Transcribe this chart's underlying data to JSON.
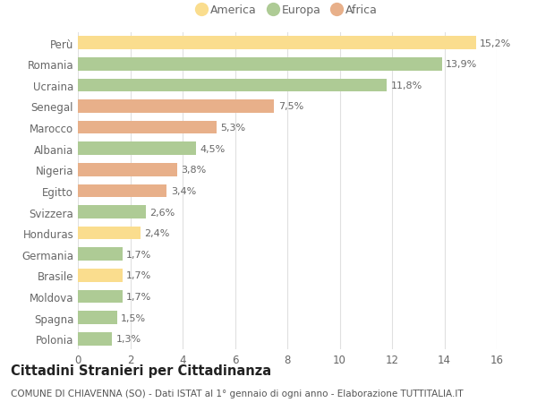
{
  "categories": [
    "Perù",
    "Romania",
    "Ucraina",
    "Senegal",
    "Marocco",
    "Albania",
    "Nigeria",
    "Egitto",
    "Svizzera",
    "Honduras",
    "Germania",
    "Brasile",
    "Moldova",
    "Spagna",
    "Polonia"
  ],
  "values": [
    15.2,
    13.9,
    11.8,
    7.5,
    5.3,
    4.5,
    3.8,
    3.4,
    2.6,
    2.4,
    1.7,
    1.7,
    1.7,
    1.5,
    1.3
  ],
  "continents": [
    "America",
    "Europa",
    "Europa",
    "Africa",
    "Africa",
    "Europa",
    "Africa",
    "Africa",
    "Europa",
    "America",
    "Europa",
    "America",
    "Europa",
    "Europa",
    "Europa"
  ],
  "colors": {
    "America": "#FADD8E",
    "Europa": "#AECB95",
    "Africa": "#E8B08A"
  },
  "labels": [
    "15,2%",
    "13,9%",
    "11,8%",
    "7,5%",
    "5,3%",
    "4,5%",
    "3,8%",
    "3,4%",
    "2,6%",
    "2,4%",
    "1,7%",
    "1,7%",
    "1,7%",
    "1,5%",
    "1,3%"
  ],
  "xlim": [
    0,
    16
  ],
  "xticks": [
    0,
    2,
    4,
    6,
    8,
    10,
    12,
    14,
    16
  ],
  "title": "Cittadini Stranieri per Cittadinanza",
  "subtitle": "COMUNE DI CHIAVENNA (SO) - Dati ISTAT al 1° gennaio di ogni anno - Elaborazione TUTTITALIA.IT",
  "legend_labels": [
    "America",
    "Europa",
    "Africa"
  ],
  "legend_colors": [
    "#FADD8E",
    "#AECB95",
    "#E8B08A"
  ],
  "bg_color": "#FFFFFF",
  "grid_color": "#E0E0E0",
  "bar_height": 0.62,
  "label_fontsize": 8.0,
  "tick_fontsize": 8.5,
  "title_fontsize": 10.5,
  "subtitle_fontsize": 7.5,
  "legend_fontsize": 9.0
}
